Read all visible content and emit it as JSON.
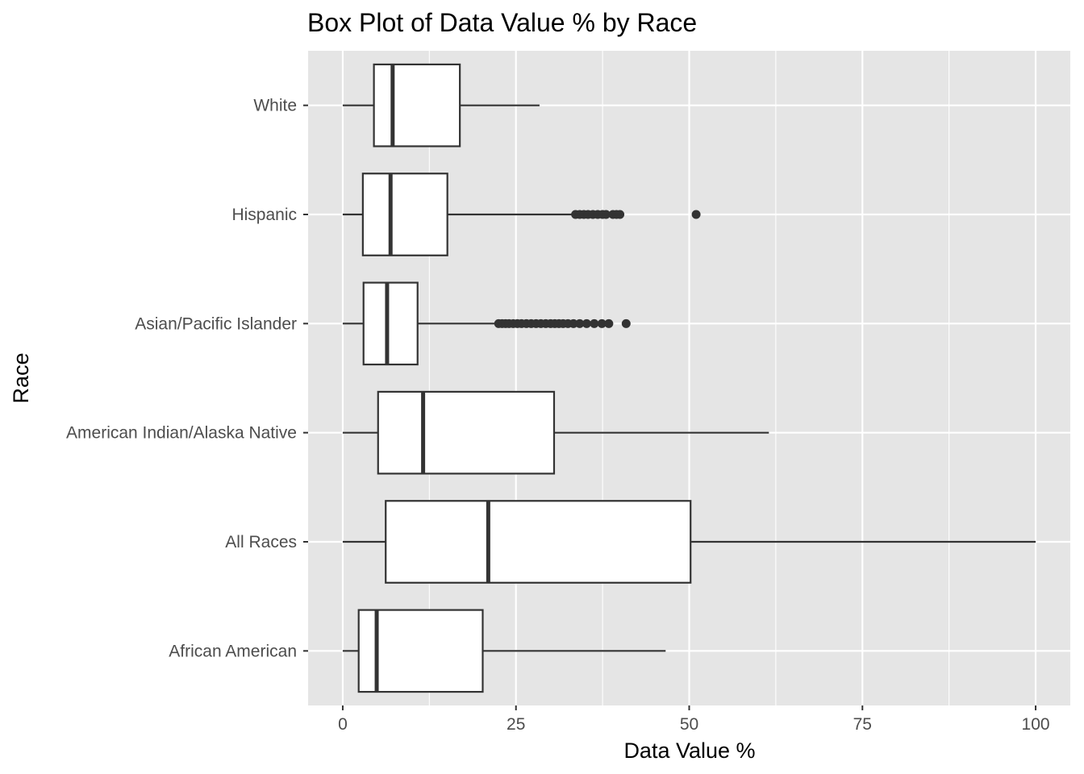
{
  "chart_data": {
    "type": "box",
    "orientation": "horizontal",
    "title": "Box Plot of Data Value % by Race",
    "xlabel": "Data Value %",
    "ylabel": "Race",
    "xlim": [
      -5,
      105
    ],
    "x_ticks": [
      0,
      25,
      50,
      75,
      100
    ],
    "x_tick_labels": [
      "0",
      "25",
      "50",
      "75",
      "100"
    ],
    "grid": true,
    "legend": "none",
    "colors": {
      "panel_background": "#e5e5e5",
      "grid": "#ffffff",
      "box_fill": "#ffffff",
      "box_stroke": "#333333",
      "outlier": "#333333"
    },
    "categories": [
      "White",
      "Hispanic",
      "Asian/Pacific Islander",
      "American Indian/Alaska Native",
      "All Races",
      "African American"
    ],
    "series": [
      {
        "category": "White",
        "min": 0,
        "q1": 4.5,
        "median": 7.2,
        "q3": 16.9,
        "max": 28.4,
        "outliers": []
      },
      {
        "category": "Hispanic",
        "min": 0,
        "q1": 2.9,
        "median": 6.9,
        "q3": 15.1,
        "max": 33.3,
        "outliers": [
          33.6,
          34.2,
          34.8,
          35.4,
          36.1,
          36.8,
          37.5,
          38.0,
          39.0,
          39.5,
          40.0,
          51.0
        ]
      },
      {
        "category": "Asian/Pacific Islander",
        "min": 0,
        "q1": 3.0,
        "median": 6.4,
        "q3": 10.8,
        "max": 22.2,
        "outliers": [
          22.5,
          23.0,
          23.5,
          24.0,
          24.6,
          25.2,
          25.8,
          26.5,
          27.2,
          27.9,
          28.6,
          29.3,
          30.0,
          30.6,
          31.2,
          31.8,
          32.5,
          33.3,
          34.2,
          35.2,
          36.3,
          37.4,
          38.4,
          40.9
        ]
      },
      {
        "category": "American Indian/Alaska Native",
        "min": 0,
        "q1": 5.1,
        "median": 11.6,
        "q3": 30.5,
        "max": 61.5,
        "outliers": []
      },
      {
        "category": "All Races",
        "min": 0,
        "q1": 6.2,
        "median": 21.0,
        "q3": 50.2,
        "max": 100,
        "outliers": []
      },
      {
        "category": "African American",
        "min": 0,
        "q1": 2.3,
        "median": 4.9,
        "q3": 20.2,
        "max": 46.6,
        "outliers": []
      }
    ]
  }
}
